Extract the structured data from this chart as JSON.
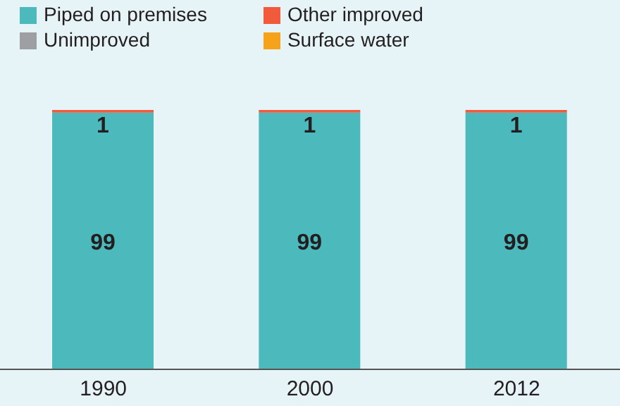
{
  "chart_data": {
    "type": "bar",
    "stacked": true,
    "categories": [
      "1990",
      "2000",
      "2012"
    ],
    "ylim": [
      0,
      100
    ],
    "tick_labels": "x",
    "legend": "top left",
    "grid": false,
    "series": [
      {
        "name": "Piped on premises",
        "color": "#4cb9bc",
        "values": [
          99,
          99,
          99
        ],
        "value_labels": [
          "99",
          "99",
          "99"
        ]
      },
      {
        "name": "Other improved",
        "color": "#f15a3a",
        "values": [
          1,
          1,
          1
        ],
        "value_labels": [
          "1",
          "1",
          "1"
        ]
      },
      {
        "name": "Unimproved",
        "color": "#9d9fa2",
        "values": [
          0,
          0,
          0
        ]
      },
      {
        "name": "Surface water",
        "color": "#f7a21b",
        "values": [
          0,
          0,
          0
        ]
      }
    ]
  }
}
